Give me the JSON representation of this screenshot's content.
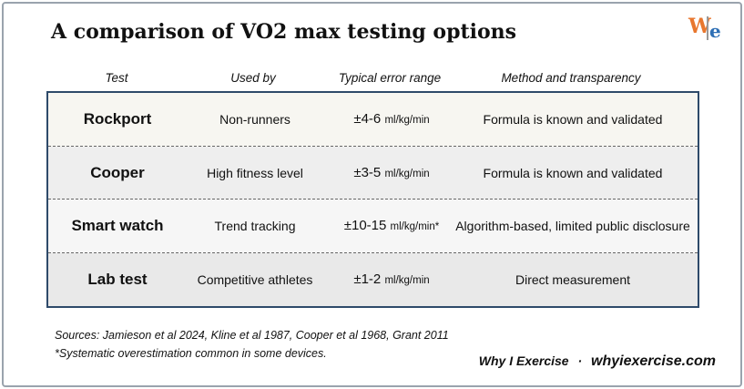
{
  "header": {
    "title": "A comparison of VO2 max testing options",
    "logo": {
      "left": "W",
      "right": "e"
    }
  },
  "table": {
    "columns": [
      "Test",
      "Used by",
      "Typical error range",
      "Method and transparency"
    ],
    "rows": [
      {
        "test": "Rockport",
        "used_by": "Non-runners",
        "range": "±4-6",
        "unit": "ml/kg/min",
        "method": "Formula is known and validated"
      },
      {
        "test": "Cooper",
        "used_by": "High fitness level",
        "range": "±3-5",
        "unit": "ml/kg/min",
        "method": "Formula is known and validated"
      },
      {
        "test": "Smart watch",
        "used_by": "Trend tracking",
        "range": "±10-15",
        "unit": "ml/kg/min*",
        "method": "Algorithm-based, limited public disclosure"
      },
      {
        "test": "Lab test",
        "used_by": "Competitive athletes",
        "range": "±1-2",
        "unit": "ml/kg/min",
        "method": "Direct measurement"
      }
    ]
  },
  "footer": {
    "sources": "Sources: Jamieson et al 2024, Kline et al 1987, Cooper et al 1968, Grant 2011",
    "note": "*Systematic overestimation common in some devices.",
    "brand": "Why I Exercise",
    "separator": "·",
    "url": "whyiexercise.com"
  }
}
